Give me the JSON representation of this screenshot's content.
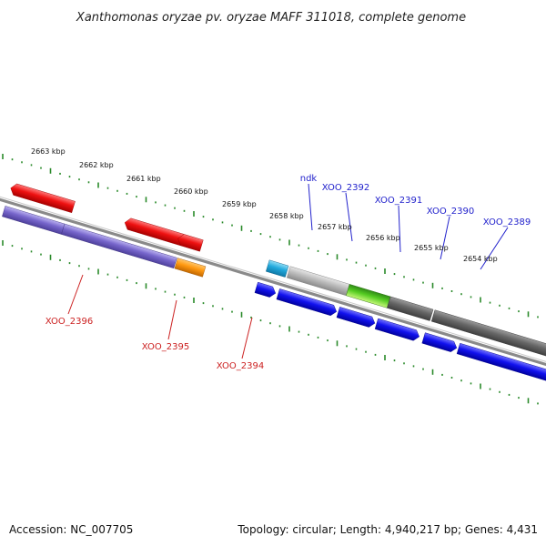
{
  "title": "Xanthomonas oryzae pv. oryzae MAFF 311018, complete genome",
  "footer": {
    "accession": "Accession: NC_007705",
    "summary": "Topology: circular; Length: 4,940,217 bp; Genes: 4,431"
  },
  "ticks": [
    "2663 kbp",
    "2662 kbp",
    "2661 kbp",
    "2660 kbp",
    "2659 kbp",
    "2658 kbp",
    "2657 kbp",
    "2656 kbp",
    "2655 kbp",
    "2654 kbp"
  ],
  "genes_above": [
    {
      "name": "ndk",
      "color": "#2222cc"
    },
    {
      "name": "XOO_2392",
      "color": "#2222cc"
    },
    {
      "name": "XOO_2391",
      "color": "#2222cc"
    },
    {
      "name": "XOO_2390",
      "color": "#2222cc"
    },
    {
      "name": "XOO_2389",
      "color": "#2222cc"
    }
  ],
  "genes_below": [
    {
      "name": "XOO_2396",
      "color": "#cc2222"
    },
    {
      "name": "XOO_2395",
      "color": "#cc2222"
    },
    {
      "name": "XOO_2394",
      "color": "#cc2222"
    }
  ],
  "colors": {
    "backbone": "#8a8a8a",
    "tick_marks": "#2a8a2a",
    "red_gene": "#ee1111",
    "purple_gene": "#7766cc",
    "dark_purple_gene": "#3b3a7a",
    "orange_gene": "#ff9911",
    "blue_gene": "#1111ee",
    "cyan_gene": "#22aadd",
    "silver_gene": "#bbbbbb",
    "green_gene": "#55cc22",
    "dark_gray_gene": "#666666"
  }
}
